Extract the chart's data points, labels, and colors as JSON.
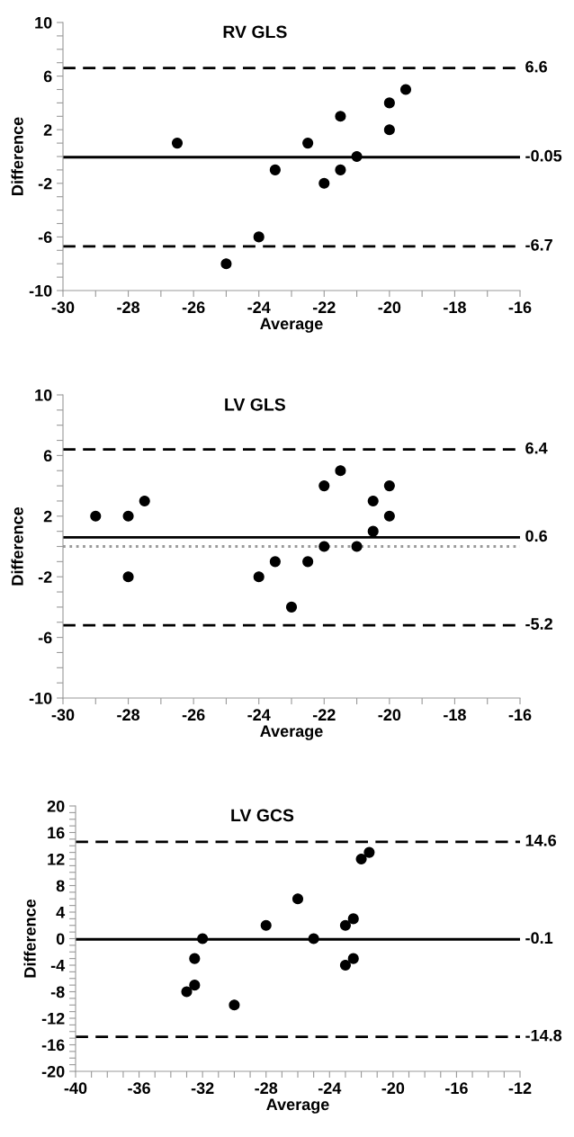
{
  "chart_data": [
    {
      "type": "scatter",
      "title": "RV GLS",
      "xlabel": "Average",
      "ylabel": "Difference",
      "marker": "circle",
      "grid": false,
      "series": [
        {
          "color": "#000000",
          "x": [
            -26.5,
            -25,
            -24,
            -23.5,
            -22.5,
            -22,
            -21.5,
            -21.5,
            -21,
            -20,
            -20,
            -19.5
          ],
          "values": [
            1,
            -8,
            -6,
            -1,
            1,
            -2,
            3,
            -1,
            0,
            4,
            2,
            5
          ]
        }
      ],
      "xlim": [
        -30,
        -16
      ],
      "ylim": [
        -10,
        10
      ],
      "xticks": [
        -30,
        {
          "value": -29,
          "label": null
        },
        -28,
        {
          "value": -27,
          "label": null
        },
        -26,
        {
          "value": -25,
          "label": null
        },
        -24,
        {
          "value": -23,
          "label": null
        },
        -22,
        {
          "value": -21,
          "label": null
        },
        -20,
        {
          "value": -19,
          "label": null
        },
        -18,
        {
          "value": -17,
          "label": null
        },
        -16
      ],
      "yticks": [
        -10,
        {
          "value": -9,
          "label": null
        },
        {
          "value": -8,
          "label": null
        },
        {
          "value": -7,
          "label": null
        },
        -6,
        {
          "value": -5,
          "label": null
        },
        {
          "value": -4,
          "label": null
        },
        {
          "value": -3,
          "label": null
        },
        -2,
        {
          "value": -1,
          "label": null
        },
        {
          "value": 0,
          "label": null
        },
        {
          "value": 1,
          "label": null
        },
        2,
        {
          "value": 3,
          "label": null
        },
        {
          "value": 4,
          "label": null
        },
        {
          "value": 5,
          "label": null
        },
        6,
        {
          "value": 7,
          "label": null
        },
        {
          "value": 8,
          "label": null
        },
        {
          "value": 9,
          "label": null
        },
        10
      ],
      "ref_lines": [
        {
          "axis": "y",
          "value": 6.6,
          "label": "6.6",
          "color": "#000000",
          "line_style": "dashed"
        },
        {
          "axis": "y",
          "value": -0.05,
          "label": "-0.05",
          "color": "#000000",
          "line_style": "solid"
        },
        {
          "axis": "y",
          "value": -6.7,
          "label": "-6.7",
          "color": "#000000",
          "line_style": "dashed"
        }
      ]
    },
    {
      "type": "scatter",
      "title": "LV GLS",
      "xlabel": "Average",
      "ylabel": "Difference",
      "marker": "circle",
      "grid": false,
      "series": [
        {
          "color": "#000000",
          "x": [
            -29,
            -28,
            -28,
            -27.5,
            -24,
            -23.5,
            -23,
            -22.5,
            -22,
            -22,
            -21.5,
            -21,
            -20.5,
            -20.5,
            -20,
            -20
          ],
          "values": [
            2,
            2,
            -2,
            3,
            -2,
            -1,
            -4,
            -1,
            4,
            0,
            5,
            0,
            3,
            1,
            4,
            2
          ]
        }
      ],
      "xlim": [
        -30,
        -16
      ],
      "ylim": [
        -10,
        10
      ],
      "xticks": [
        -30,
        {
          "value": -29,
          "label": null
        },
        -28,
        {
          "value": -27,
          "label": null
        },
        -26,
        {
          "value": -25,
          "label": null
        },
        -24,
        {
          "value": -23,
          "label": null
        },
        -22,
        {
          "value": -21,
          "label": null
        },
        -20,
        {
          "value": -19,
          "label": null
        },
        -18,
        {
          "value": -17,
          "label": null
        },
        -16
      ],
      "yticks": [
        -10,
        {
          "value": -9,
          "label": null
        },
        {
          "value": -8,
          "label": null
        },
        {
          "value": -7,
          "label": null
        },
        -6,
        {
          "value": -5,
          "label": null
        },
        {
          "value": -4,
          "label": null
        },
        {
          "value": -3,
          "label": null
        },
        -2,
        {
          "value": -1,
          "label": null
        },
        {
          "value": 0,
          "label": null
        },
        {
          "value": 1,
          "label": null
        },
        2,
        {
          "value": 3,
          "label": null
        },
        {
          "value": 4,
          "label": null
        },
        {
          "value": 5,
          "label": null
        },
        6,
        {
          "value": 7,
          "label": null
        },
        {
          "value": 8,
          "label": null
        },
        {
          "value": 9,
          "label": null
        },
        10
      ],
      "ref_lines": [
        {
          "axis": "y",
          "value": 6.4,
          "label": "6.4",
          "color": "#000000",
          "line_style": "dashed"
        },
        {
          "axis": "y",
          "value": 0.6,
          "label": "0.6",
          "color": "#000000",
          "line_style": "solid"
        },
        {
          "axis": "y",
          "value": 0,
          "label": null,
          "color": "#999999",
          "line_style": "dotted"
        },
        {
          "axis": "y",
          "value": -5.2,
          "label": "-5.2",
          "color": "#000000",
          "line_style": "dashed"
        }
      ]
    },
    {
      "type": "scatter",
      "title": "LV GCS",
      "xlabel": "Average",
      "ylabel": "Difference",
      "marker": "circle",
      "grid": false,
      "series": [
        {
          "color": "#000000",
          "x": [
            -33,
            -32.5,
            -32.5,
            -32,
            -30,
            -28,
            -26,
            -25,
            -23,
            -23,
            -22.5,
            -22.5,
            -22,
            -21.5
          ],
          "values": [
            -8,
            -7,
            -3,
            0,
            -10,
            2,
            6,
            0,
            2,
            -4,
            3,
            -3,
            12,
            13
          ]
        }
      ],
      "xlim": [
        -40,
        -12
      ],
      "ylim": [
        -20,
        20
      ],
      "xticks": [
        -40,
        {
          "value": -39,
          "label": null
        },
        {
          "value": -38,
          "label": null
        },
        {
          "value": -37,
          "label": null
        },
        -36,
        {
          "value": -35,
          "label": null
        },
        {
          "value": -34,
          "label": null
        },
        {
          "value": -33,
          "label": null
        },
        -32,
        {
          "value": -31,
          "label": null
        },
        {
          "value": -30,
          "label": null
        },
        {
          "value": -29,
          "label": null
        },
        -28,
        {
          "value": -27,
          "label": null
        },
        {
          "value": -26,
          "label": null
        },
        {
          "value": -25,
          "label": null
        },
        -24,
        {
          "value": -23,
          "label": null
        },
        {
          "value": -22,
          "label": null
        },
        {
          "value": -21,
          "label": null
        },
        -20,
        {
          "value": -19,
          "label": null
        },
        {
          "value": -18,
          "label": null
        },
        {
          "value": -17,
          "label": null
        },
        -16,
        {
          "value": -15,
          "label": null
        },
        {
          "value": -14,
          "label": null
        },
        {
          "value": -13,
          "label": null
        },
        -12
      ],
      "yticks": [
        -20,
        {
          "value": -19,
          "label": null
        },
        {
          "value": -18,
          "label": null
        },
        {
          "value": -17,
          "label": null
        },
        -16,
        {
          "value": -15,
          "label": null
        },
        {
          "value": -14,
          "label": null
        },
        {
          "value": -13,
          "label": null
        },
        -12,
        {
          "value": -11,
          "label": null
        },
        {
          "value": -10,
          "label": null
        },
        {
          "value": -9,
          "label": null
        },
        -8,
        {
          "value": -7,
          "label": null
        },
        {
          "value": -6,
          "label": null
        },
        {
          "value": -5,
          "label": null
        },
        -4,
        {
          "value": -3,
          "label": null
        },
        {
          "value": -2,
          "label": null
        },
        {
          "value": -1,
          "label": null
        },
        0,
        {
          "value": 1,
          "label": null
        },
        {
          "value": 2,
          "label": null
        },
        {
          "value": 3,
          "label": null
        },
        4,
        {
          "value": 5,
          "label": null
        },
        {
          "value": 6,
          "label": null
        },
        {
          "value": 7,
          "label": null
        },
        8,
        {
          "value": 9,
          "label": null
        },
        {
          "value": 10,
          "label": null
        },
        {
          "value": 11,
          "label": null
        },
        12,
        {
          "value": 13,
          "label": null
        },
        {
          "value": 14,
          "label": null
        },
        {
          "value": 15,
          "label": null
        },
        16,
        {
          "value": 17,
          "label": null
        },
        {
          "value": 18,
          "label": null
        },
        {
          "value": 19,
          "label": null
        },
        20
      ],
      "ref_lines": [
        {
          "axis": "y",
          "value": 14.6,
          "label": "14.6",
          "color": "#000000",
          "line_style": "dashed"
        },
        {
          "axis": "y",
          "value": -0.1,
          "label": "-0.1",
          "color": "#000000",
          "line_style": "solid"
        },
        {
          "axis": "y",
          "value": -14.8,
          "label": "-14.8",
          "color": "#000000",
          "line_style": "dashed"
        }
      ]
    }
  ]
}
